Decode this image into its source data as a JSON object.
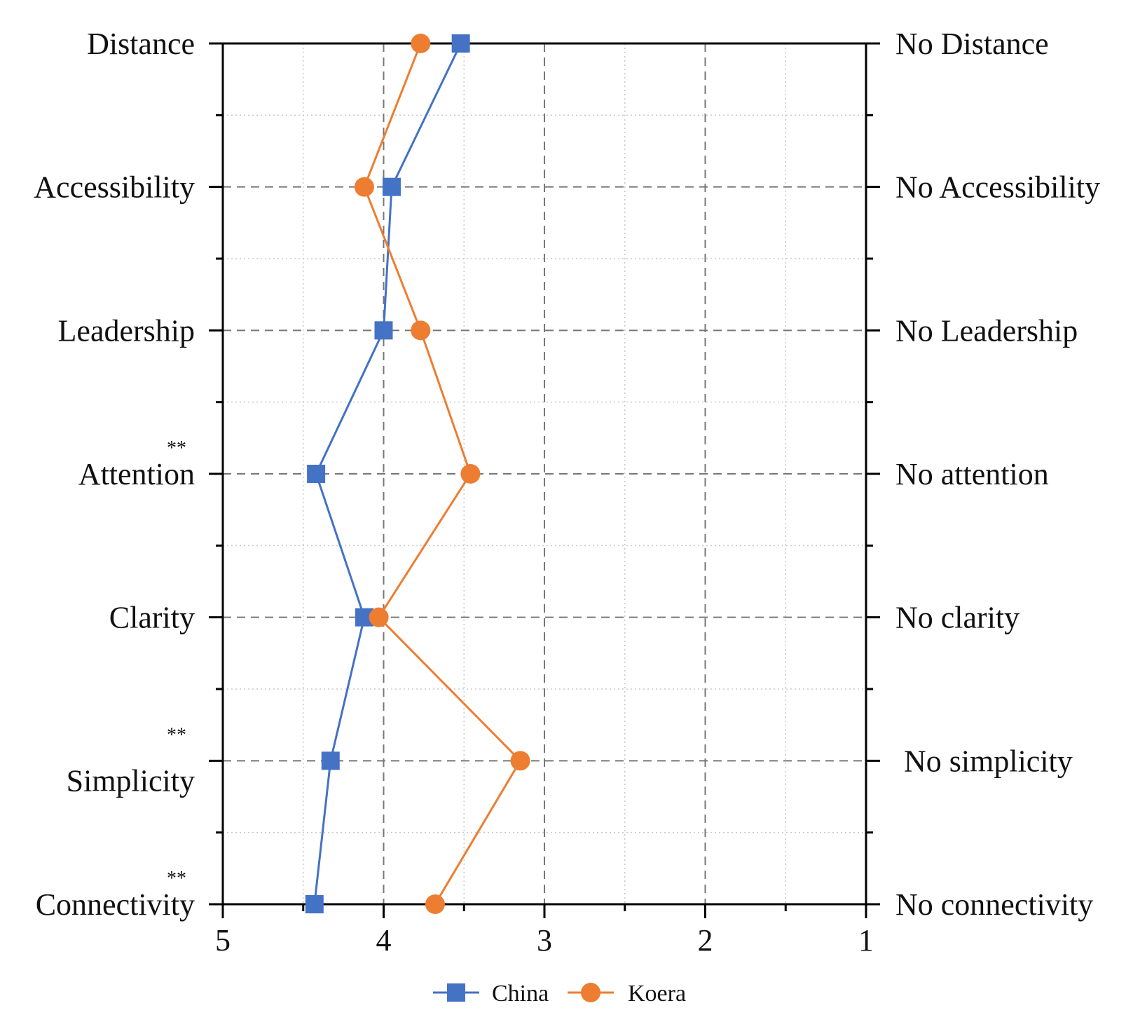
{
  "chart_data": {
    "type": "line",
    "orientation": "horizontal-value-axis",
    "x_axis": {
      "ticks": [
        5,
        4,
        3,
        2,
        1
      ],
      "range": [
        5,
        1
      ],
      "reversed": true
    },
    "categories_left": [
      "Distance",
      "Accessibility",
      "Leadership",
      "Attention",
      "Clarity",
      "Simplicity",
      "Connectivity"
    ],
    "categories_right": [
      "No Distance",
      "No Accessibility",
      "No Leadership",
      "No attention",
      "No clarity",
      "No simplicity",
      "No connectivity"
    ],
    "significance": [
      "",
      "",
      "",
      "**",
      "",
      "**",
      "**"
    ],
    "series": [
      {
        "name": "China",
        "color": "#4472C4",
        "marker": "square",
        "values": [
          3.52,
          3.95,
          4.0,
          4.42,
          4.12,
          4.33,
          4.43
        ]
      },
      {
        "name": "Koera",
        "color": "#ED7D31",
        "marker": "circle",
        "values": [
          3.77,
          4.12,
          3.77,
          3.46,
          4.03,
          3.15,
          3.68
        ]
      }
    ],
    "grid": true,
    "legend": "bottom-center"
  }
}
